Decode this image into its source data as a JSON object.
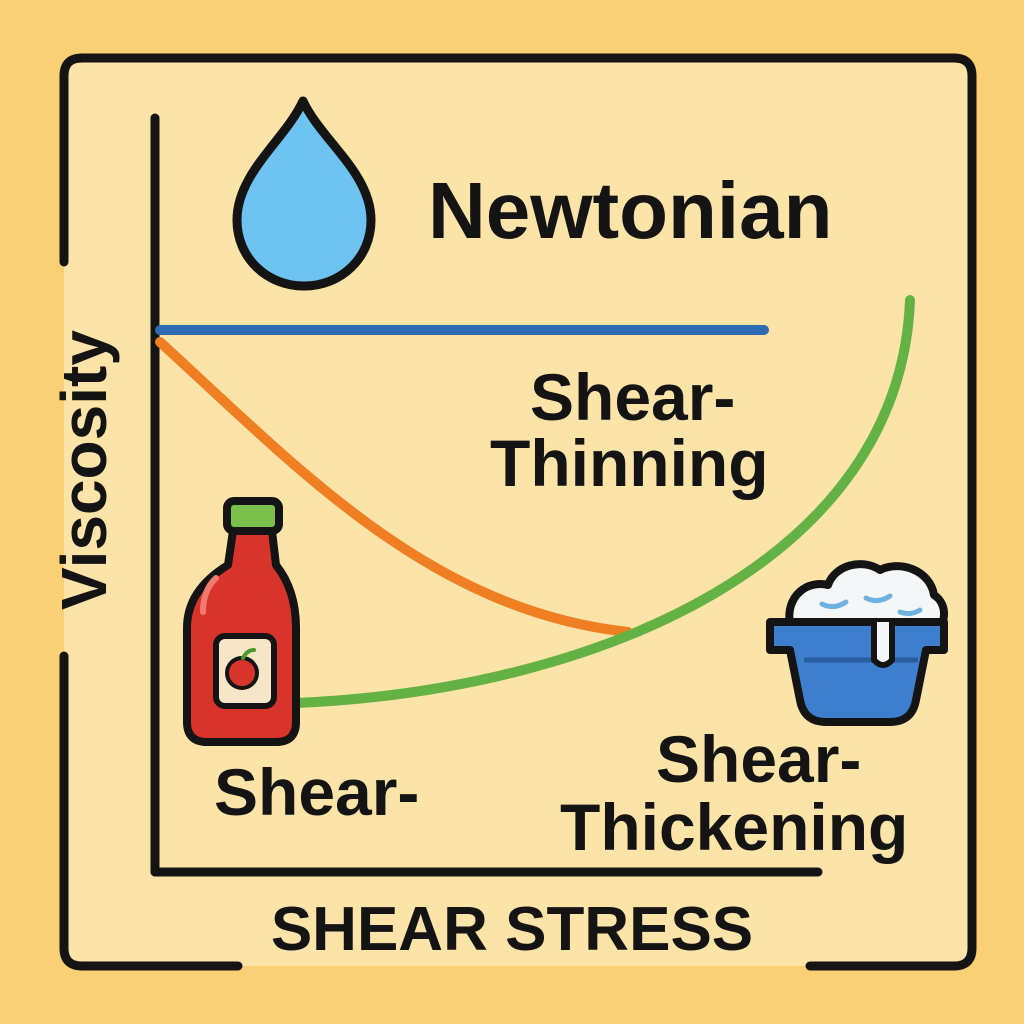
{
  "diagram": {
    "title": "Newtonian",
    "y_axis_label": "Viscosity",
    "x_axis_label": "SHEAR STRESS",
    "labels": {
      "shear_thinning_line1": "Shear-",
      "shear_thinning_line2": "Thinning",
      "shear_bottom_left": "Shear-",
      "shear_thickening_line1": "Shear-",
      "shear_thickening_line2": "Thickening"
    },
    "icons": [
      "water-drop-icon",
      "ketchup-bottle-icon",
      "cream-bowl-icon"
    ],
    "colors": {
      "background": "#fbcf74",
      "panel": "#fce3a8",
      "newtonian_line": "#2f6db3",
      "shear_thinning_line": "#ef7f22",
      "shear_thickening_line": "#64b144",
      "outline": "#141414"
    }
  }
}
